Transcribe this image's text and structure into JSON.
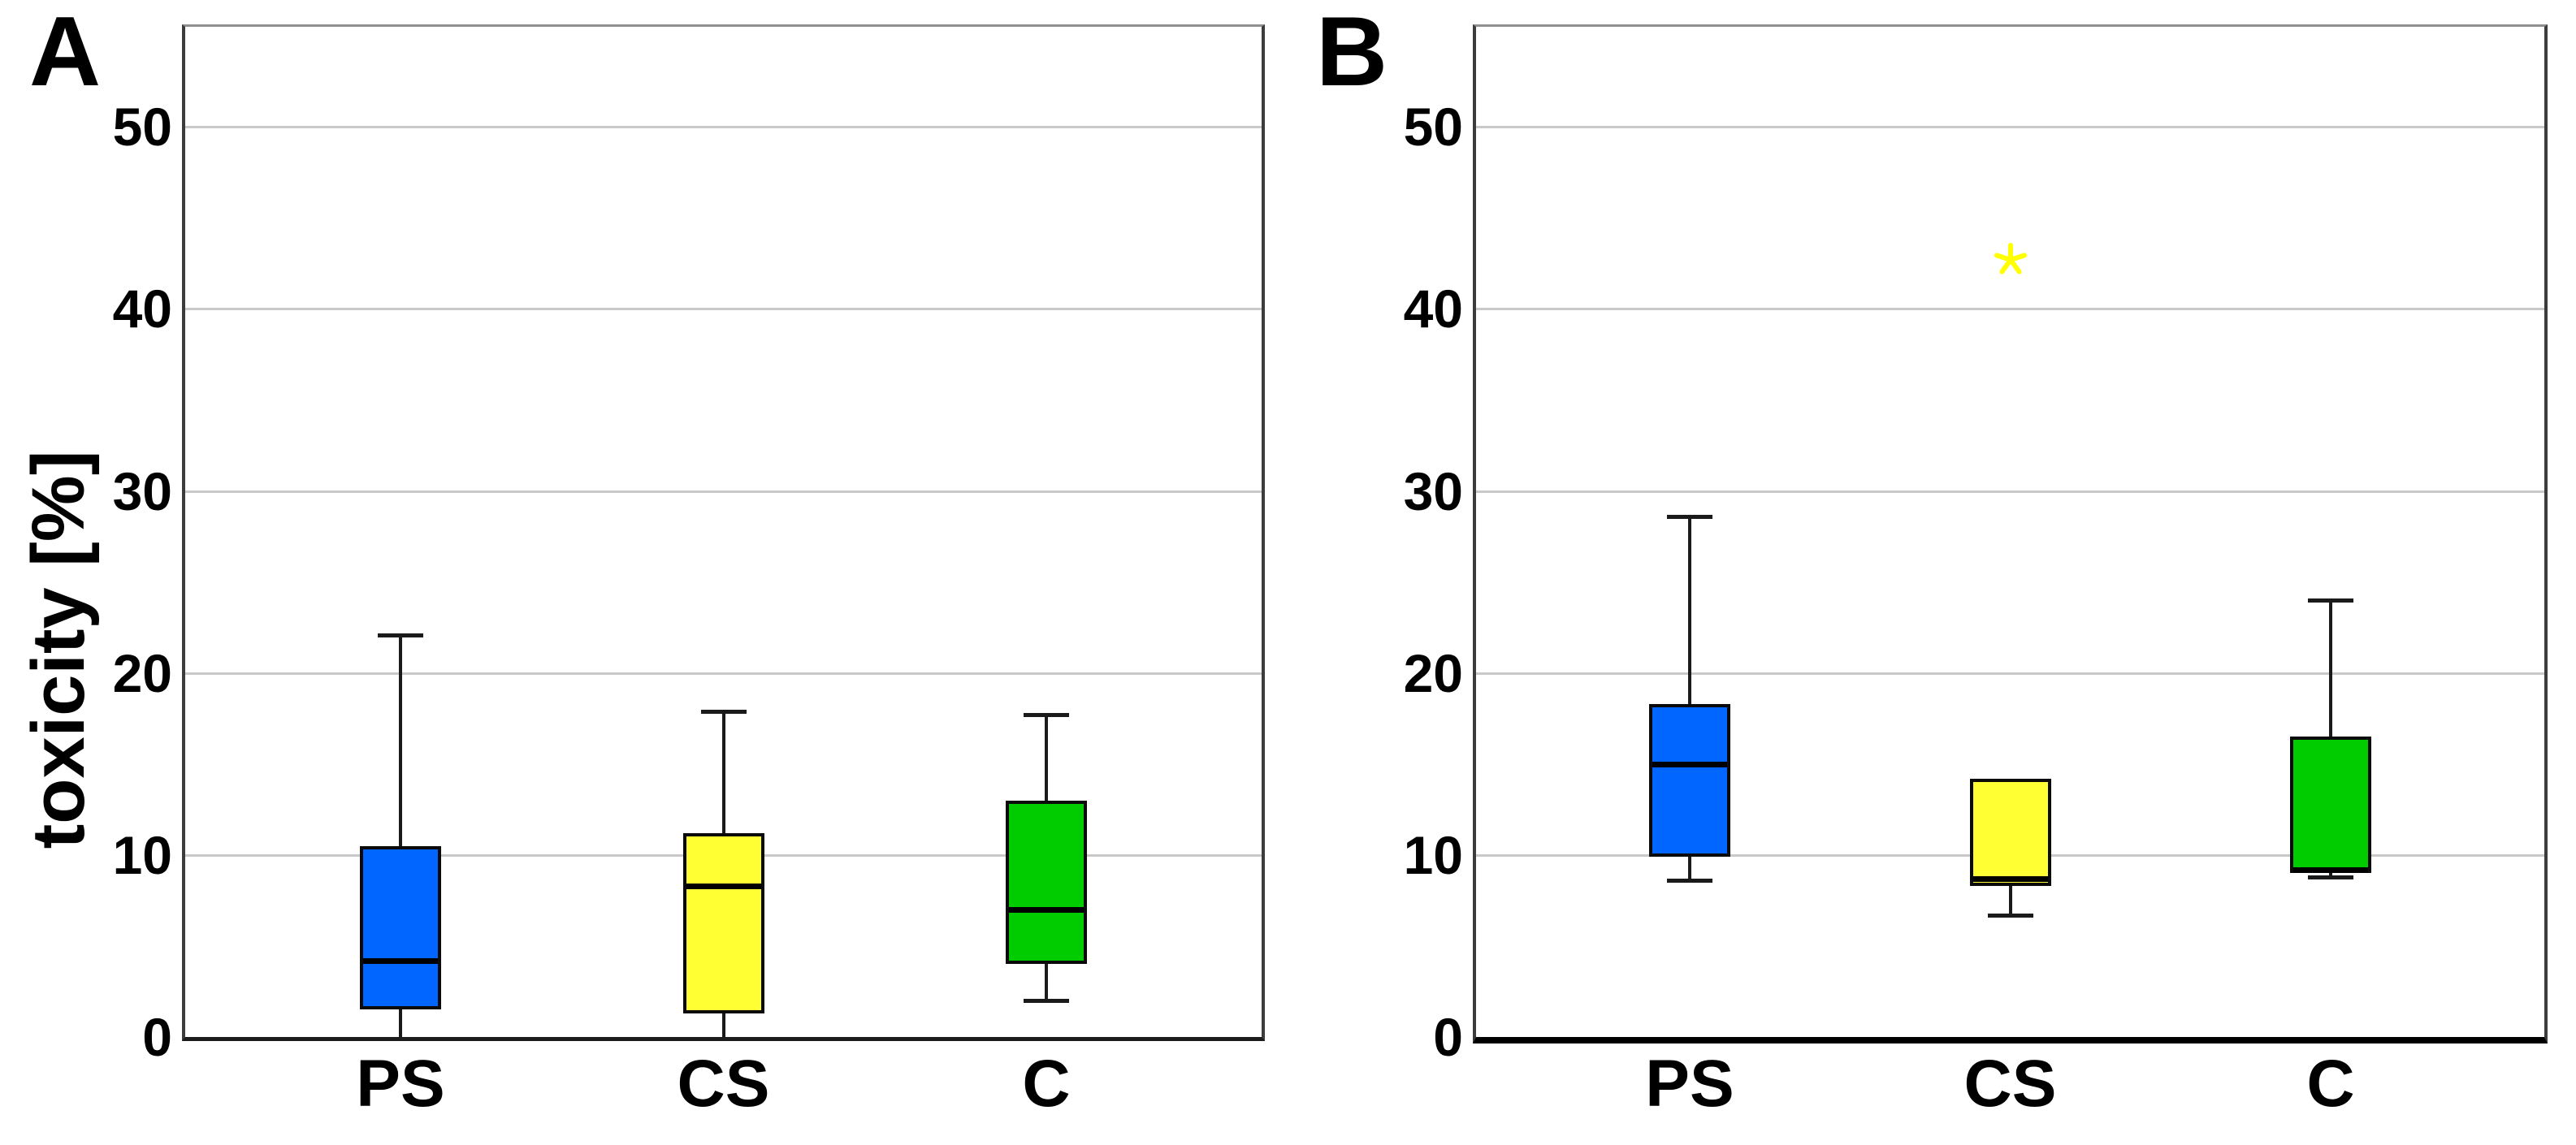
{
  "chart_data": [
    {
      "type": "box",
      "panel_label": "A",
      "ylabel": "toxicity [%]",
      "yticks": [
        0,
        10,
        20,
        30,
        40,
        50
      ],
      "ylim": [
        0,
        55.5
      ],
      "grid": "horizontal",
      "legend": "none",
      "categories": [
        "PS",
        "CS",
        "C"
      ],
      "series": [
        {
          "name": "PS",
          "color": "#0066ff",
          "min": 0,
          "q1": 1.5,
          "median": 4.2,
          "q3": 10.5,
          "max": 22.1,
          "min_cap": false,
          "outliers": []
        },
        {
          "name": "CS",
          "color": "#ffff33",
          "min": 0,
          "q1": 1.3,
          "median": 8.3,
          "q3": 11.2,
          "max": 17.9,
          "min_cap": false,
          "outliers": []
        },
        {
          "name": "C",
          "color": "#00cc00",
          "min": 2.0,
          "q1": 4.0,
          "median": 7.0,
          "q3": 13.0,
          "max": 17.7,
          "min_cap": true,
          "outliers": []
        }
      ]
    },
    {
      "type": "box",
      "panel_label": "B",
      "ylabel": "",
      "yticks": [
        0,
        10,
        20,
        30,
        40,
        50
      ],
      "ylim": [
        0,
        55.5
      ],
      "grid": "horizontal",
      "legend": "none",
      "categories": [
        "PS",
        "CS",
        "C"
      ],
      "series": [
        {
          "name": "PS",
          "color": "#0066ff",
          "min": 8.6,
          "q1": 9.9,
          "median": 15.0,
          "q3": 18.3,
          "max": 28.6,
          "min_cap": true,
          "outliers": []
        },
        {
          "name": "CS",
          "color": "#ffff33",
          "min": 6.7,
          "q1": 8.3,
          "median": 8.7,
          "q3": 14.2,
          "max": 14.2,
          "min_cap": true,
          "outliers": [
            42.7
          ]
        },
        {
          "name": "C",
          "color": "#00cc00",
          "min": 8.8,
          "q1": 9.0,
          "median": 9.2,
          "q3": 16.5,
          "max": 24.0,
          "min_cap": true,
          "outliers": []
        }
      ]
    }
  ],
  "style": {
    "outlier_color": "#ffff00",
    "gridline_color": "#c9c9c9"
  }
}
